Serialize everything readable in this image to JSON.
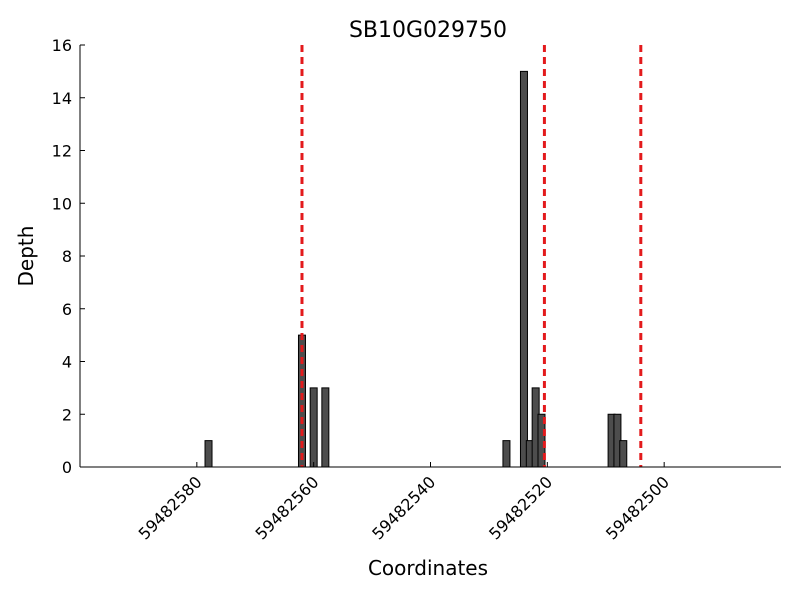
{
  "chart_data": {
    "type": "bar",
    "title": "SB10G029750",
    "xlabel": "Coordinates",
    "ylabel": "Depth",
    "x_reversed": true,
    "xlim": [
      59482600,
      59482480
    ],
    "ylim": [
      0,
      16
    ],
    "x_ticks": [
      59482580,
      59482560,
      59482540,
      59482520,
      59482500
    ],
    "x_tick_labels": [
      "59482580",
      "59482560",
      "59482540",
      "59482520",
      "59482500"
    ],
    "y_ticks": [
      0,
      2,
      4,
      6,
      8,
      10,
      12,
      14,
      16
    ],
    "y_tick_labels": [
      "0",
      "2",
      "4",
      "6",
      "8",
      "10",
      "12",
      "14",
      "16"
    ],
    "bar_color": "#4d4d4d",
    "bars": [
      {
        "x": 59482578,
        "value": 1
      },
      {
        "x": 59482562,
        "value": 5
      },
      {
        "x": 59482560,
        "value": 3
      },
      {
        "x": 59482558,
        "value": 3
      },
      {
        "x": 59482527,
        "value": 1
      },
      {
        "x": 59482524,
        "value": 15
      },
      {
        "x": 59482523,
        "value": 1
      },
      {
        "x": 59482522,
        "value": 3
      },
      {
        "x": 59482521,
        "value": 2
      },
      {
        "x": 59482509,
        "value": 2
      },
      {
        "x": 59482508,
        "value": 2
      },
      {
        "x": 59482507,
        "value": 1
      }
    ],
    "reference_lines": {
      "color": "#e31a1c",
      "style": "dashed",
      "x": [
        59482562.0,
        59482520.5,
        59482504.0
      ]
    },
    "grid": false
  }
}
